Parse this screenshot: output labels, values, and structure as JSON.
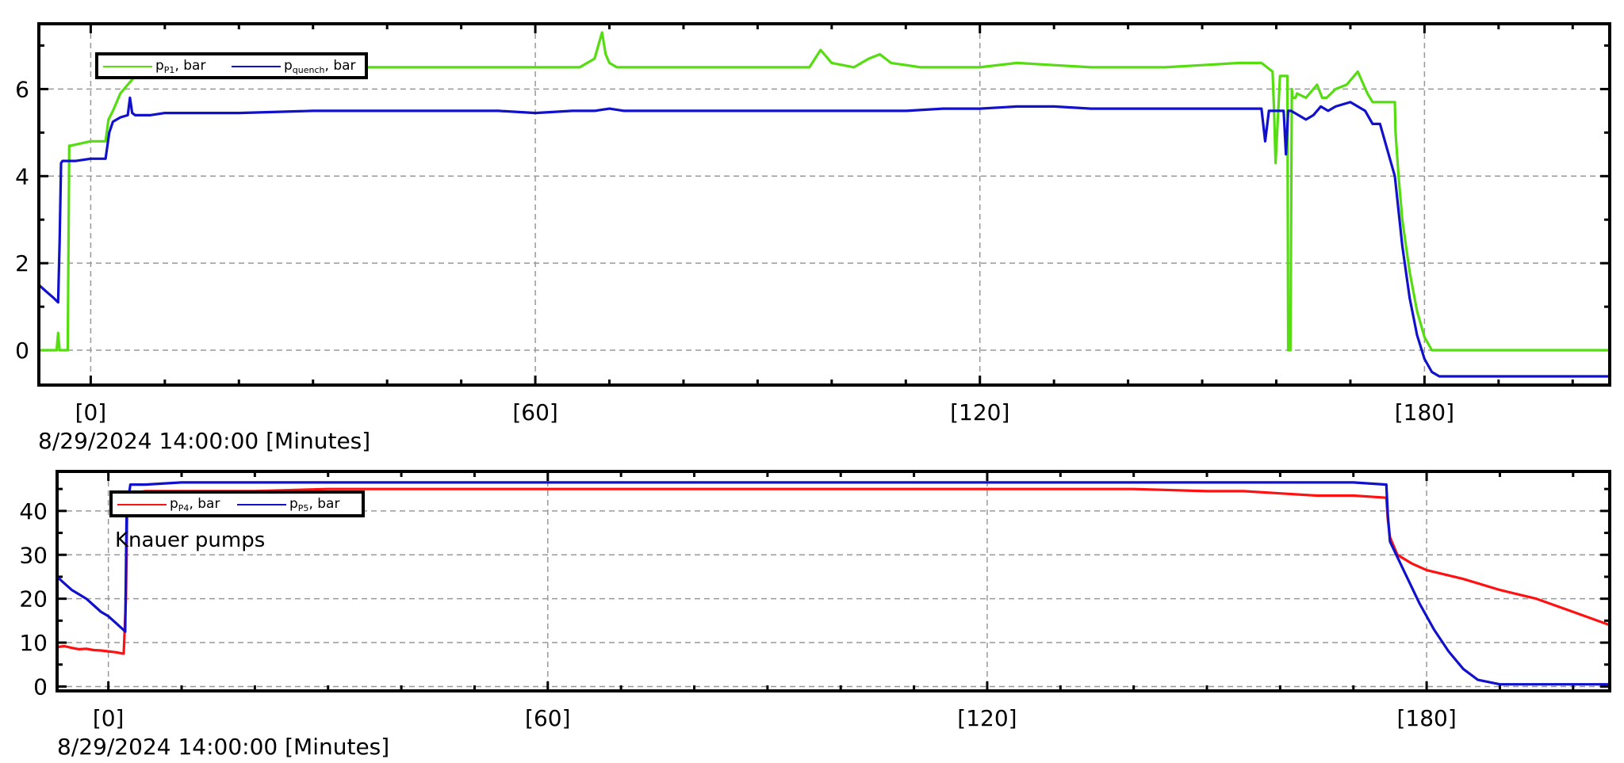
{
  "colors": {
    "green": "#55dd11",
    "blue": "#1111cc",
    "red": "#ff1111",
    "grid": "#999999"
  },
  "chart_data": [
    {
      "type": "line",
      "xlim": [
        -7,
        205
      ],
      "ylim": [
        -0.8,
        7.5
      ],
      "x_ticks": [
        {
          "value": 0,
          "label": "[0]"
        },
        {
          "value": 60,
          "label": "[60]"
        },
        {
          "value": 120,
          "label": "[120]"
        },
        {
          "value": 180,
          "label": "[180]"
        }
      ],
      "y_ticks": [
        {
          "value": 0,
          "label": "0"
        },
        {
          "value": 2,
          "label": "2"
        },
        {
          "value": 4,
          "label": "4"
        },
        {
          "value": 6,
          "label": "6"
        }
      ],
      "xlabel": "8/29/2024 14:00:00 [Minutes]",
      "grid": true,
      "legend_position": "top-left",
      "series": [
        {
          "legend_main": "p",
          "legend_sub": "P1",
          "legend_suffix": ", bar",
          "color_key": "green",
          "x": [
            -7,
            -4.6,
            -4.4,
            -4.2,
            -3.9,
            -3.1,
            -2.9,
            -2.7,
            0,
            2,
            2.4,
            3,
            4,
            5,
            6,
            7,
            8,
            9,
            10,
            15,
            20,
            25,
            30,
            35,
            40,
            45,
            50,
            55,
            60,
            63,
            66,
            68,
            69,
            69.5,
            70,
            71,
            72,
            75,
            80,
            85,
            90,
            95,
            97,
            98.5,
            100,
            103,
            105,
            106.5,
            108,
            112,
            120,
            125,
            130,
            135,
            140,
            145,
            150,
            155,
            158,
            159.5,
            159.7,
            159.9,
            160.5,
            161.5,
            161.6,
            161.9,
            162.1,
            162.2,
            162.3,
            162.6,
            162.8,
            164,
            165.5,
            166.2,
            166.8,
            168,
            169.5,
            171,
            172.3,
            173,
            174,
            176,
            176.1,
            176.5,
            177,
            178,
            179,
            180,
            181,
            182,
            183,
            205
          ],
          "y": [
            0,
            0,
            0.4,
            0,
            0,
            0,
            4.7,
            4.7,
            4.8,
            4.8,
            5.3,
            5.5,
            5.9,
            6.1,
            6.3,
            6.3,
            6.3,
            6.4,
            6.5,
            6.5,
            6.5,
            6.5,
            6.5,
            6.5,
            6.5,
            6.5,
            6.5,
            6.5,
            6.5,
            6.5,
            6.5,
            6.7,
            7.3,
            6.8,
            6.6,
            6.5,
            6.5,
            6.5,
            6.5,
            6.5,
            6.5,
            6.5,
            6.5,
            6.9,
            6.6,
            6.5,
            6.7,
            6.8,
            6.6,
            6.5,
            6.5,
            6.6,
            6.55,
            6.5,
            6.5,
            6.5,
            6.55,
            6.6,
            6.6,
            6.4,
            5.5,
            4.3,
            6.3,
            6.3,
            0,
            0,
            6.0,
            5.8,
            5.8,
            5.8,
            5.9,
            5.8,
            6.1,
            5.8,
            5.8,
            6.0,
            6.1,
            6.4,
            5.9,
            5.7,
            5.7,
            5.7,
            5.0,
            4.0,
            3.0,
            1.8,
            0.9,
            0.3,
            0,
            0,
            0,
            0
          ]
        },
        {
          "legend_main": "p",
          "legend_sub": "quench",
          "legend_suffix": ", bar",
          "color_key": "blue",
          "x": [
            -7,
            -6,
            -5,
            -4.4,
            -4.2,
            -4.0,
            -3.8,
            -3.5,
            -3,
            -2,
            0,
            2,
            2.5,
            3,
            4,
            5,
            5.3,
            5.6,
            6,
            8,
            10,
            15,
            20,
            30,
            40,
            50,
            55,
            60,
            65,
            68,
            70,
            72,
            75,
            80,
            85,
            90,
            95,
            100,
            105,
            110,
            115,
            120,
            125,
            130,
            135,
            140,
            145,
            150,
            155,
            158,
            158.5,
            159,
            160,
            161,
            161.3,
            161.6,
            162,
            164,
            165,
            166,
            167,
            168,
            170,
            172,
            173,
            174,
            176,
            177,
            178,
            179,
            180,
            181,
            182,
            183,
            205
          ],
          "y": [
            1.5,
            1.35,
            1.2,
            1.1,
            2.5,
            4.3,
            4.35,
            4.35,
            4.35,
            4.35,
            4.4,
            4.4,
            5.0,
            5.25,
            5.35,
            5.4,
            5.8,
            5.45,
            5.4,
            5.4,
            5.45,
            5.45,
            5.45,
            5.5,
            5.5,
            5.5,
            5.5,
            5.45,
            5.5,
            5.5,
            5.55,
            5.5,
            5.5,
            5.5,
            5.5,
            5.5,
            5.5,
            5.5,
            5.5,
            5.5,
            5.55,
            5.55,
            5.6,
            5.6,
            5.55,
            5.55,
            5.55,
            5.55,
            5.55,
            5.55,
            4.8,
            5.5,
            5.5,
            5.5,
            4.5,
            5.5,
            5.5,
            5.3,
            5.4,
            5.6,
            5.5,
            5.6,
            5.7,
            5.5,
            5.2,
            5.2,
            4.0,
            2.4,
            1.2,
            0.35,
            -0.2,
            -0.5,
            -0.6,
            -0.6,
            -0.6
          ]
        }
      ]
    },
    {
      "type": "line",
      "xlim": [
        -7,
        205
      ],
      "ylim": [
        -1,
        49
      ],
      "x_ticks": [
        {
          "value": 0,
          "label": "[0]"
        },
        {
          "value": 60,
          "label": "[60]"
        },
        {
          "value": 120,
          "label": "[120]"
        },
        {
          "value": 180,
          "label": "[180]"
        }
      ],
      "y_ticks": [
        {
          "value": 0,
          "label": "0"
        },
        {
          "value": 10,
          "label": "10"
        },
        {
          "value": 20,
          "label": "20"
        },
        {
          "value": 30,
          "label": "30"
        },
        {
          "value": 40,
          "label": "40"
        }
      ],
      "xlabel": "8/29/2024 14:00:00 [Minutes]",
      "grid": true,
      "legend_position": "top-left",
      "annotation": "Knauer pumps",
      "series": [
        {
          "legend_main": "p",
          "legend_sub": "P4",
          "legend_suffix": ", bar",
          "color_key": "red",
          "x": [
            -7,
            -6,
            -5,
            -4,
            -3,
            -2,
            -1,
            0,
            1,
            2,
            2.1,
            2.4,
            2.6,
            3,
            5,
            10,
            20,
            30,
            40,
            50,
            60,
            70,
            80,
            90,
            100,
            110,
            120,
            130,
            140,
            150,
            155,
            160,
            165,
            170,
            174.5,
            174.7,
            175,
            176,
            178,
            180,
            185,
            190,
            195,
            200,
            205
          ],
          "y": [
            9,
            9.2,
            8.8,
            8.5,
            8.6,
            8.3,
            8.2,
            8,
            7.8,
            7.5,
            7.5,
            20,
            44,
            44,
            44.5,
            44.5,
            44.5,
            45,
            45,
            45,
            45,
            45,
            45,
            45,
            45,
            45,
            45,
            45,
            45,
            44.5,
            44.5,
            44,
            43.5,
            43.5,
            43,
            38,
            34,
            30,
            28,
            26.5,
            24.5,
            22,
            20,
            17,
            14
          ]
        },
        {
          "legend_main": "p",
          "legend_sub": "P5",
          "legend_suffix": ", bar",
          "color_key": "blue",
          "x": [
            -7,
            -6,
            -5,
            -4,
            -3,
            -2,
            -1,
            0,
            1,
            2,
            2.3,
            2.5,
            3,
            5,
            10,
            20,
            30,
            40,
            50,
            60,
            70,
            80,
            90,
            100,
            110,
            120,
            130,
            140,
            150,
            160,
            170,
            174.5,
            174.7,
            175,
            177,
            179,
            181,
            183,
            185,
            187,
            190,
            195,
            200,
            205
          ],
          "y": [
            25,
            23.5,
            22,
            21,
            20,
            18.5,
            17,
            16,
            14.5,
            13,
            12.5,
            40,
            46,
            46,
            46.5,
            46.5,
            46.5,
            46.5,
            46.5,
            46.5,
            46.5,
            46.5,
            46.5,
            46.5,
            46.5,
            46.5,
            46.5,
            46.5,
            46.5,
            46.5,
            46.5,
            46,
            39,
            33,
            26,
            19,
            13,
            8,
            4,
            1.5,
            0.5,
            0.5,
            0.5,
            0.5
          ]
        }
      ]
    }
  ]
}
